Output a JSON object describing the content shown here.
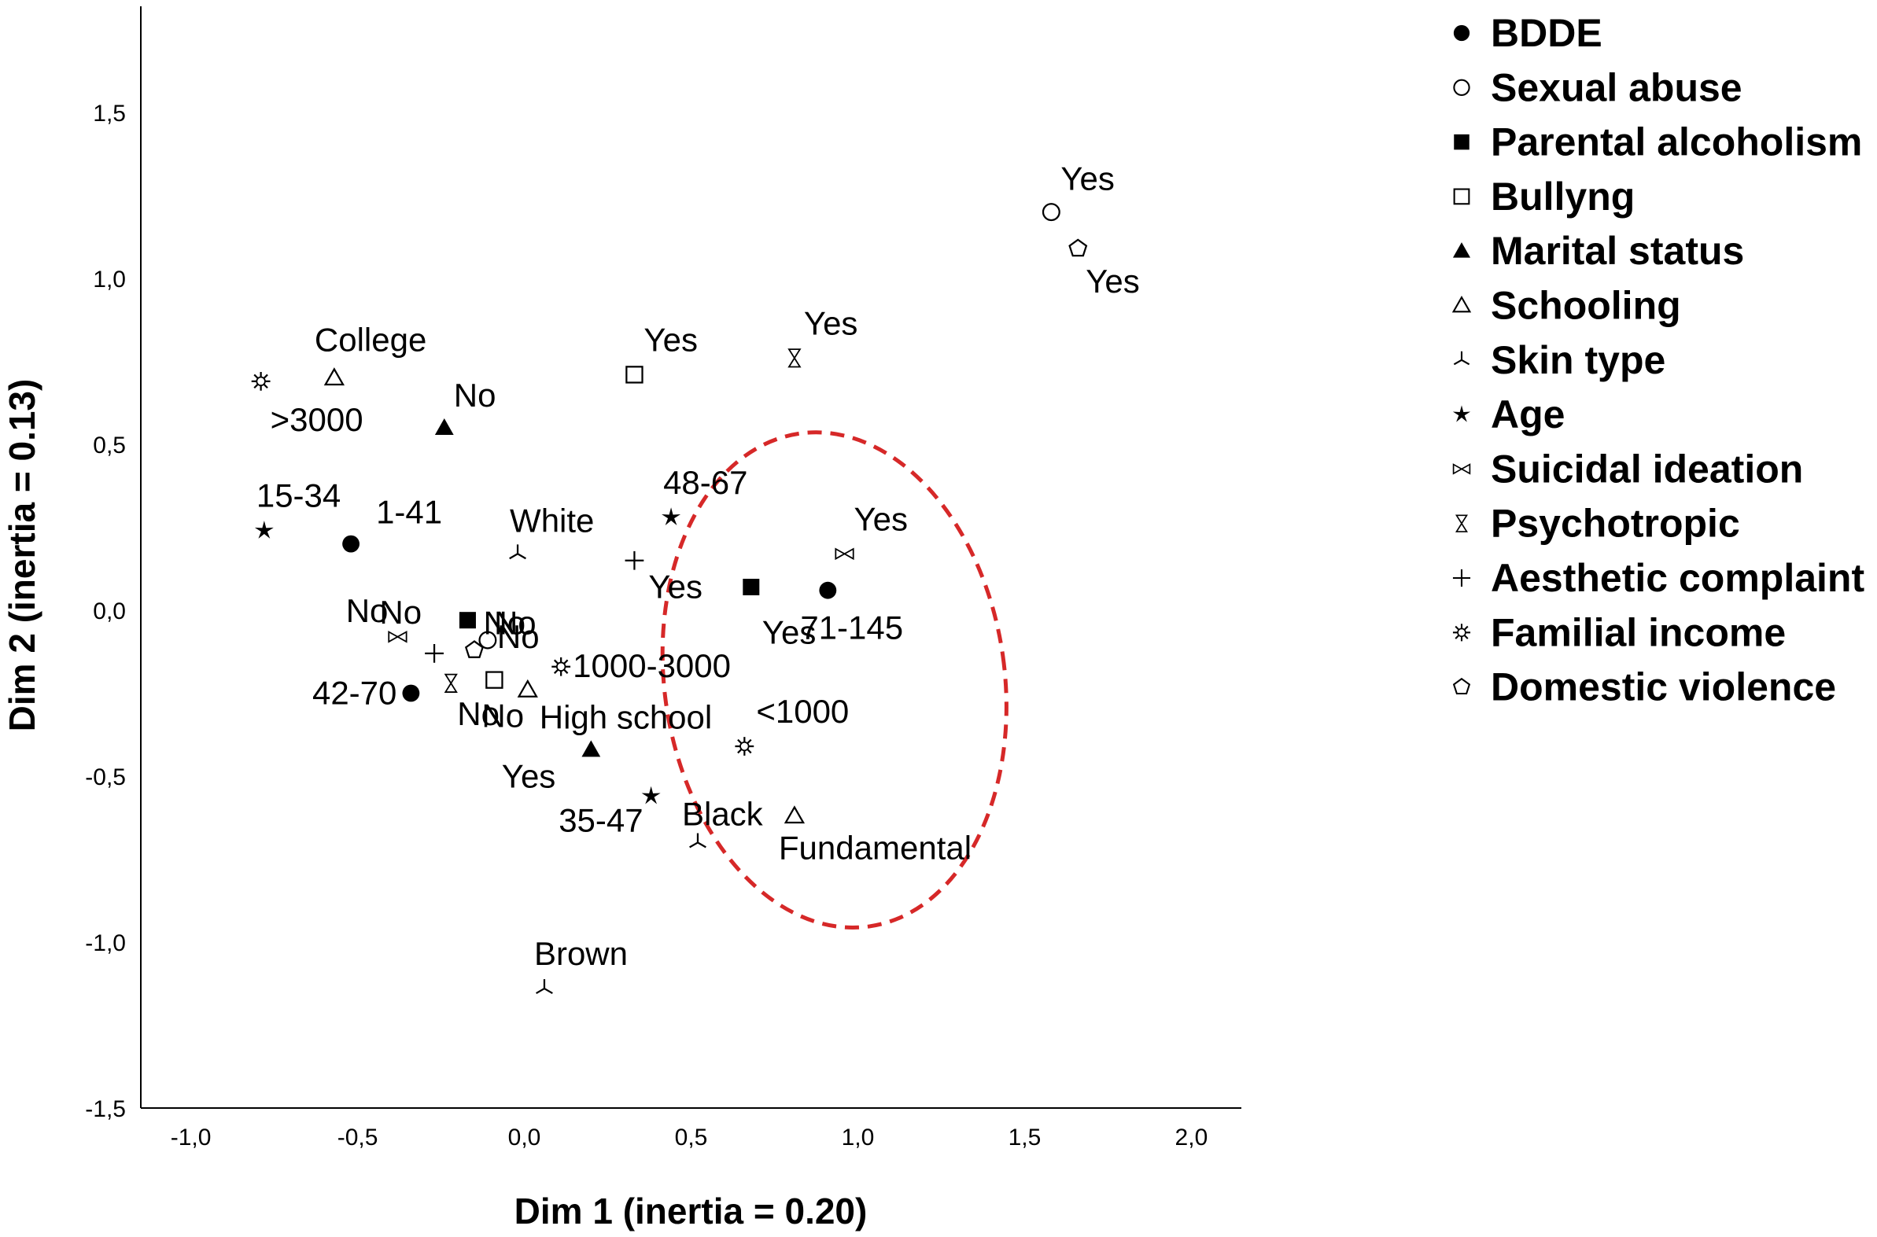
{
  "chart_data": {
    "type": "scatter",
    "xlabel": "Dim 1 (inertia = 0.20)",
    "ylabel": "Dim 2 (inertia = 0.13)",
    "xlim": [
      -1.15,
      2.15
    ],
    "ylim": [
      -1.5,
      1.82
    ],
    "xticks": [
      "-1,0",
      "-0,5",
      "0,0",
      "0,5",
      "1,0",
      "1,5",
      "2,0"
    ],
    "yticks": [
      "-1,5",
      "-1,0",
      "-0,5",
      "0,0",
      "0,5",
      "1,0",
      "1,5"
    ],
    "grid": false,
    "legend_position": "right",
    "series": [
      {
        "name": "BDDE",
        "marker": "filled-circle",
        "points": [
          {
            "x": -0.52,
            "y": 0.2,
            "label": "1-41"
          },
          {
            "x": -0.34,
            "y": -0.25,
            "label": "42-70"
          },
          {
            "x": 0.91,
            "y": 0.06,
            "label": "71-145"
          }
        ]
      },
      {
        "name": "Sexual abuse",
        "marker": "open-circle",
        "points": [
          {
            "x": -0.11,
            "y": -0.09,
            "label": "No"
          },
          {
            "x": 1.58,
            "y": 1.2,
            "label": "Yes"
          }
        ]
      },
      {
        "name": "Parental alcoholism",
        "marker": "filled-square",
        "points": [
          {
            "x": -0.17,
            "y": -0.03,
            "label": "No"
          },
          {
            "x": 0.68,
            "y": 0.07,
            "label": "Yes"
          }
        ]
      },
      {
        "name": "Bullyng",
        "marker": "open-square",
        "points": [
          {
            "x": -0.09,
            "y": -0.21,
            "label": "No"
          },
          {
            "x": 0.33,
            "y": 0.71,
            "label": "Yes"
          }
        ]
      },
      {
        "name": "Marital status",
        "marker": "filled-triangle",
        "points": [
          {
            "x": -0.24,
            "y": 0.55,
            "label": "No"
          },
          {
            "x": 0.2,
            "y": -0.42,
            "label": "Yes"
          }
        ]
      },
      {
        "name": "Schooling",
        "marker": "open-triangle",
        "points": [
          {
            "x": -0.57,
            "y": 0.7,
            "label": "College"
          },
          {
            "x": 0.01,
            "y": -0.24,
            "label": "High school"
          },
          {
            "x": 0.81,
            "y": -0.62,
            "label": "Fundamental"
          }
        ]
      },
      {
        "name": "Skin type",
        "marker": "tri-down",
        "points": [
          {
            "x": -0.02,
            "y": 0.17,
            "label": "White"
          },
          {
            "x": 0.52,
            "y": -0.7,
            "label": "Black"
          },
          {
            "x": 0.06,
            "y": -1.14,
            "label": "Brown"
          }
        ]
      },
      {
        "name": "Age",
        "marker": "star",
        "points": [
          {
            "x": -0.78,
            "y": 0.24,
            "label": "15-34"
          },
          {
            "x": 0.44,
            "y": 0.28,
            "label": "48-67"
          },
          {
            "x": 0.38,
            "y": -0.56,
            "label": "35-47"
          }
        ]
      },
      {
        "name": "Suicidal ideation",
        "marker": "bowtie",
        "points": [
          {
            "x": -0.38,
            "y": -0.08,
            "label": "No"
          },
          {
            "x": 0.96,
            "y": 0.17,
            "label": "Yes"
          }
        ]
      },
      {
        "name": "Psychotropic",
        "marker": "hourglass",
        "points": [
          {
            "x": -0.22,
            "y": -0.22,
            "label": "No"
          },
          {
            "x": 0.81,
            "y": 0.76,
            "label": "Yes"
          }
        ]
      },
      {
        "name": "Aesthetic complaint",
        "marker": "plus",
        "points": [
          {
            "x": -0.27,
            "y": -0.13,
            "label": "No"
          },
          {
            "x": 0.33,
            "y": 0.15,
            "label": "Yes"
          }
        ]
      },
      {
        "name": "Familial income",
        "marker": "gear",
        "points": [
          {
            "x": -0.79,
            "y": 0.69,
            "label": ">3000"
          },
          {
            "x": 0.11,
            "y": -0.17,
            "label": "1000-3000"
          },
          {
            "x": 0.66,
            "y": -0.41,
            "label": "<1000"
          }
        ]
      },
      {
        "name": "Domestic violence",
        "marker": "pentagon",
        "points": [
          {
            "x": -0.15,
            "y": -0.12,
            "label": "No"
          },
          {
            "x": 1.66,
            "y": 1.09,
            "label": "Yes"
          }
        ]
      }
    ],
    "highlight": {
      "shape": "dashed-ellipse",
      "color": "#d62828",
      "center": [
        0.93,
        -0.21
      ],
      "rx": 0.51,
      "ry": 0.75
    }
  }
}
